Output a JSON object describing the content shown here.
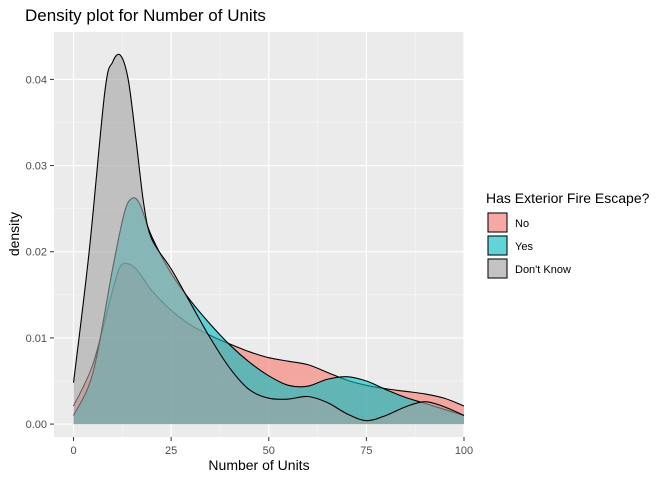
{
  "chart_data": {
    "type": "area",
    "title": "Density plot for Number of Units",
    "xlabel": "Number of Units",
    "ylabel": "density",
    "xlim": [
      -5,
      100
    ],
    "ylim": [
      -0.0015,
      0.0455
    ],
    "x_ticks": [
      0,
      25,
      50,
      75,
      100
    ],
    "x_tick_labels": [
      "0",
      "25",
      "50",
      "75",
      "100"
    ],
    "y_ticks": [
      0.0,
      0.01,
      0.02,
      0.03,
      0.04
    ],
    "y_tick_labels": [
      "0.00",
      "0.01",
      "0.02",
      "0.03",
      "0.04"
    ],
    "grid": true,
    "legend": {
      "title": "Has Exterior Fire Escape?",
      "position": "right"
    },
    "series": [
      {
        "name": "No",
        "color": "#F8766D",
        "x": [
          0,
          5,
          10,
          12,
          14,
          16,
          18,
          20,
          25,
          30,
          35,
          40,
          45,
          50,
          55,
          60,
          65,
          70,
          75,
          80,
          85,
          90,
          95,
          100
        ],
        "y": [
          0.0021,
          0.007,
          0.0155,
          0.0183,
          0.0186,
          0.018,
          0.0168,
          0.0155,
          0.0132,
          0.0115,
          0.0103,
          0.0093,
          0.0084,
          0.0077,
          0.0073,
          0.0069,
          0.006,
          0.0051,
          0.0045,
          0.0041,
          0.0038,
          0.0035,
          0.003,
          0.0021
        ]
      },
      {
        "name": "Yes",
        "color": "#00BFC4",
        "x": [
          0,
          5,
          10,
          13,
          15,
          17,
          20,
          25,
          30,
          35,
          40,
          45,
          50,
          55,
          60,
          65,
          70,
          75,
          80,
          85,
          90,
          95,
          100
        ],
        "y": [
          0.001,
          0.006,
          0.018,
          0.0245,
          0.0262,
          0.0255,
          0.0218,
          0.0175,
          0.0143,
          0.0116,
          0.0092,
          0.0072,
          0.0056,
          0.0045,
          0.0044,
          0.0052,
          0.0055,
          0.005,
          0.004,
          0.0031,
          0.0024,
          0.0017,
          0.001
        ]
      },
      {
        "name": "Don't Know",
        "color": "#A3A3A3",
        "x": [
          0,
          4,
          8,
          10,
          12,
          14,
          16,
          18,
          20,
          25,
          30,
          35,
          40,
          45,
          50,
          55,
          60,
          65,
          70,
          75,
          80,
          85,
          90,
          95,
          100
        ],
        "y": [
          0.0048,
          0.02,
          0.0385,
          0.042,
          0.0428,
          0.04,
          0.033,
          0.0255,
          0.0215,
          0.018,
          0.014,
          0.01,
          0.0065,
          0.004,
          0.003,
          0.0029,
          0.0032,
          0.0025,
          0.0012,
          0.0004,
          0.001,
          0.002,
          0.0026,
          0.002,
          0.001
        ]
      }
    ]
  }
}
